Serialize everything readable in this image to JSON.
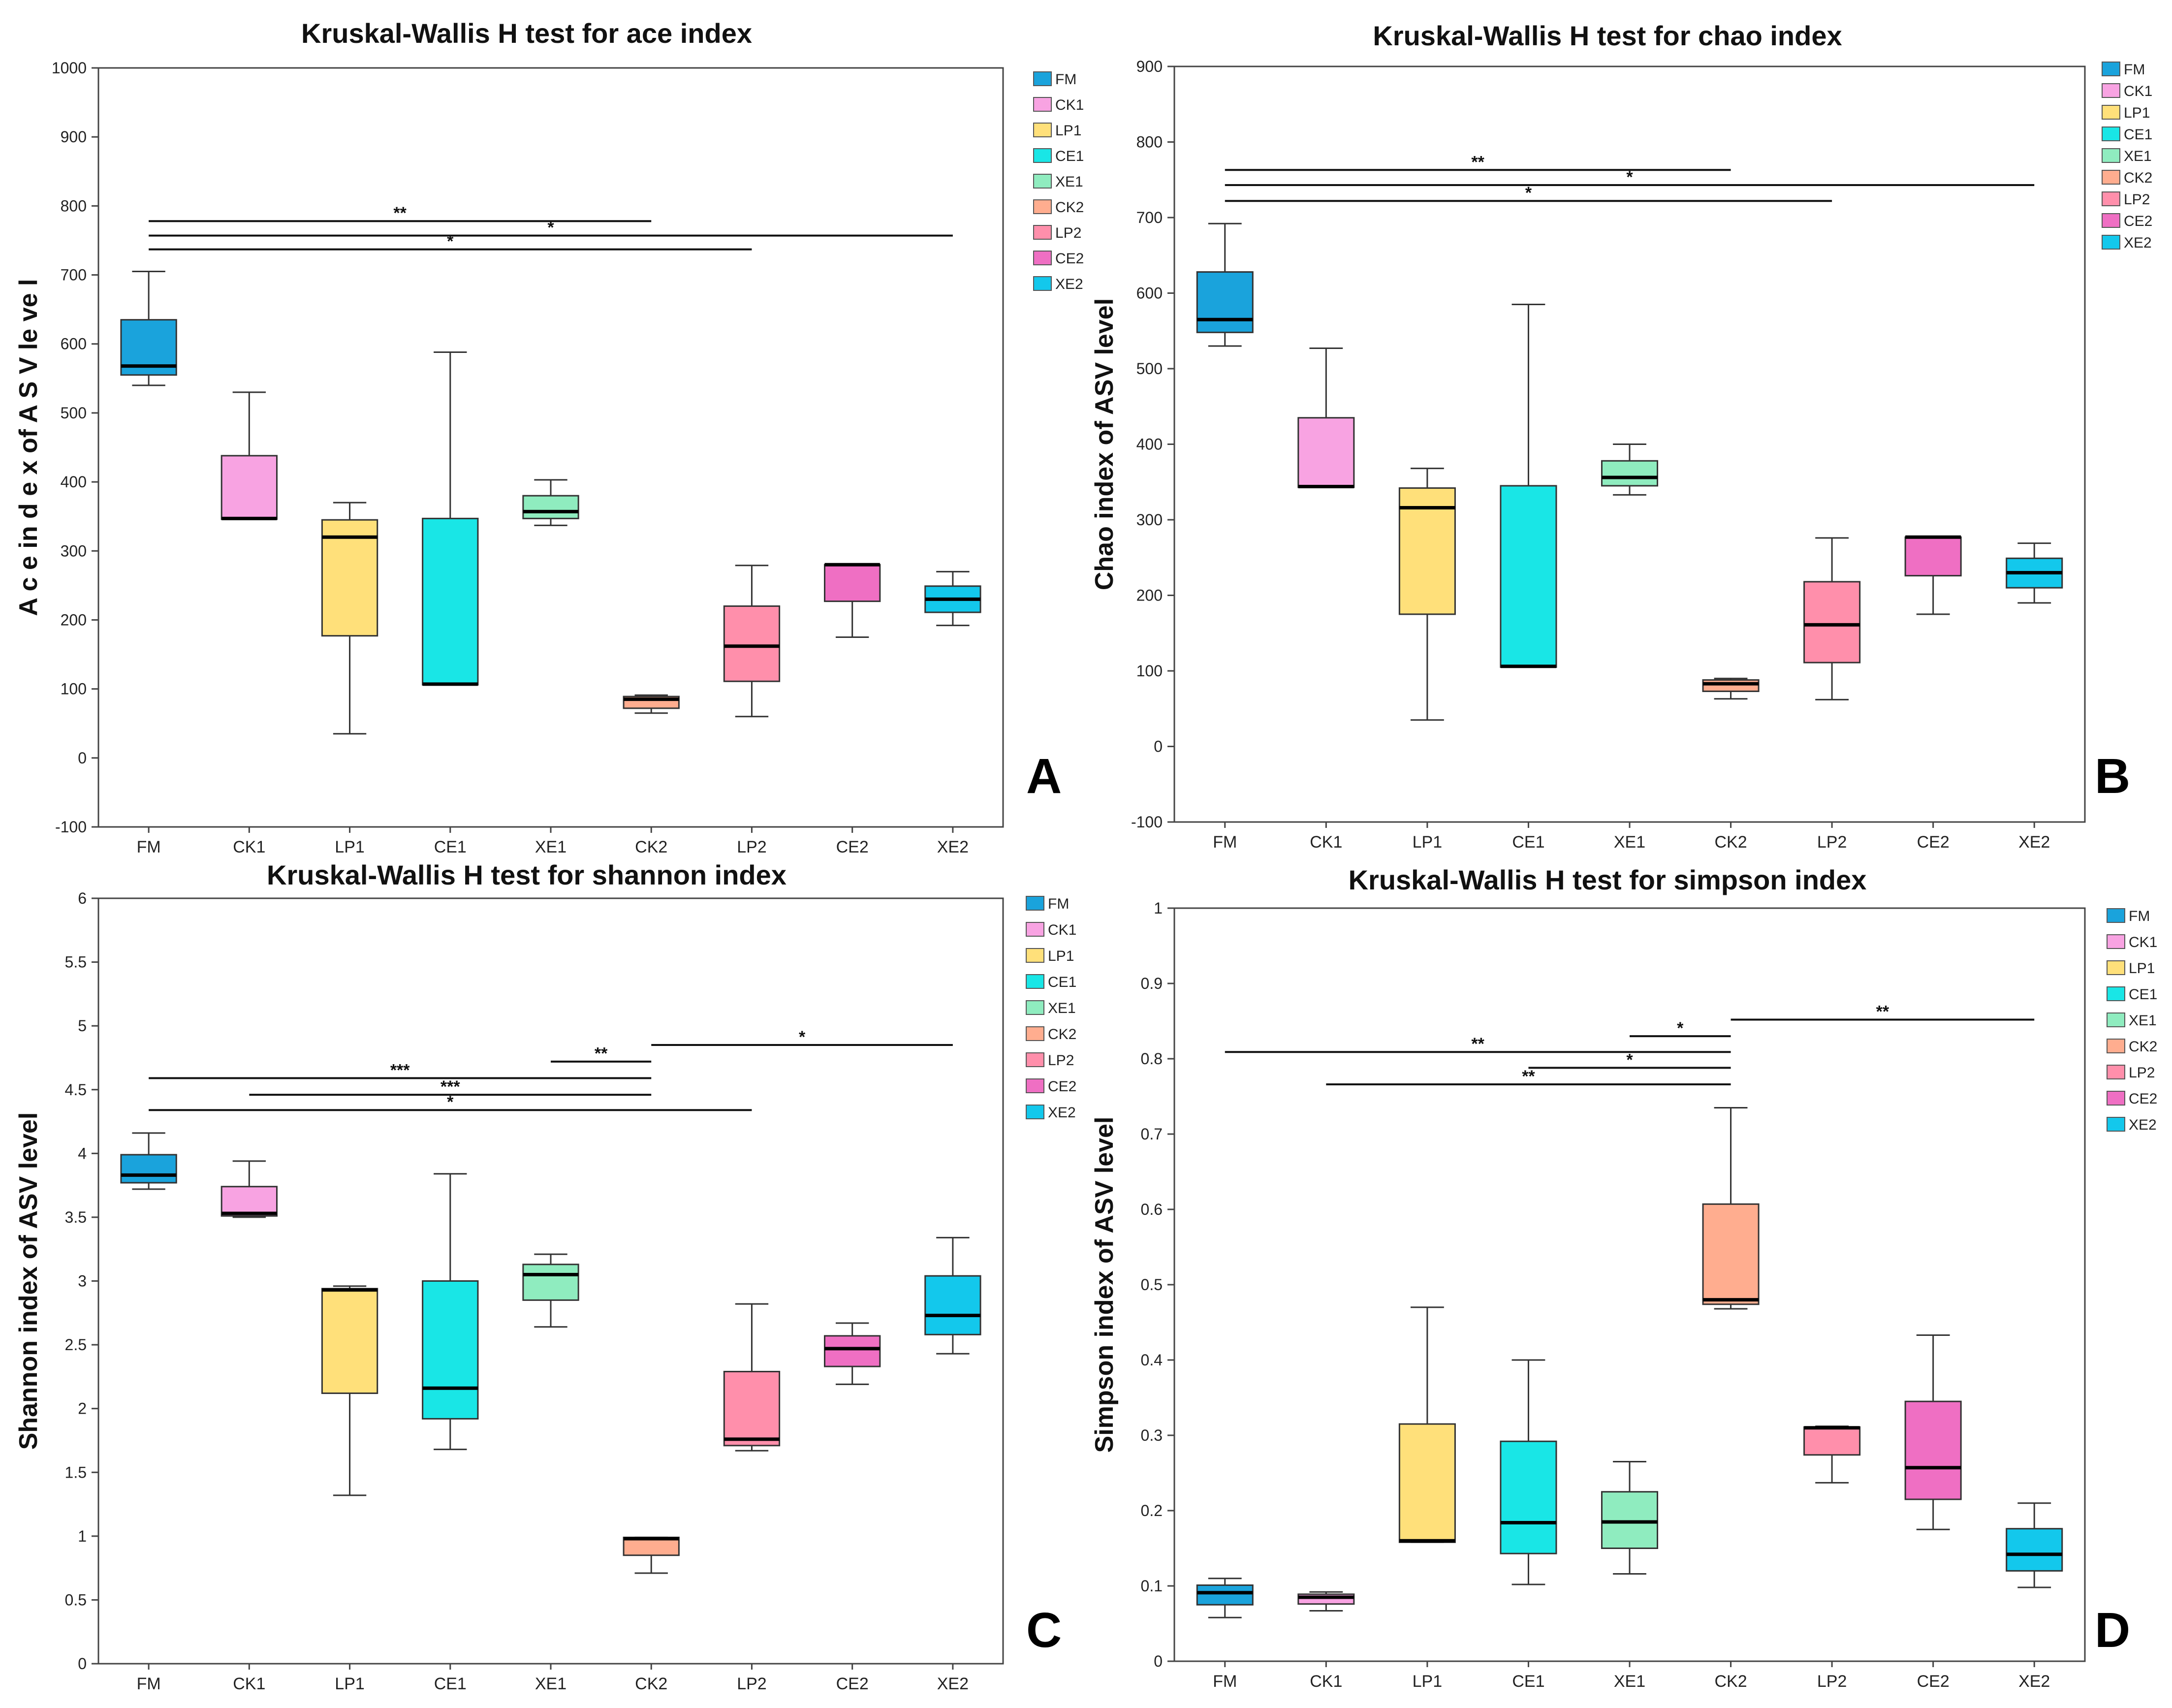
{
  "colors": {
    "FM": "#1aa3dc",
    "CK1": "#f8a3e2",
    "LP1": "#ffe07a",
    "CE1": "#19e6e6",
    "XE1": "#8fecbf",
    "CK2": "#ffad8f",
    "LP2": "#ff8fab",
    "CE2": "#ef6fc3",
    "XE2": "#13c8ec"
  },
  "chart_data": [
    {
      "id": "A",
      "type": "box",
      "panel_label": "A",
      "title": "Kruskal-Wallis H test for ace index",
      "ylabel": "A c e in d e x of A S V le ve l",
      "xlabel": "",
      "ylim": [
        -100,
        1000
      ],
      "yticks": [
        -100,
        0,
        100,
        200,
        300,
        400,
        500,
        600,
        700,
        800,
        900,
        1000
      ],
      "categories": [
        "FM",
        "CK1",
        "LP1",
        "CE1",
        "XE1",
        "CK2",
        "LP2",
        "CE2",
        "XE2"
      ],
      "legend": [
        "FM",
        "CK1",
        "LP1",
        "CE1",
        "XE1",
        "CK2",
        "LP2",
        "CE2",
        "XE2"
      ],
      "legend_position": "right",
      "grid": false,
      "boxes": [
        {
          "name": "FM",
          "min": 540,
          "q1": 555,
          "median": 568,
          "q3": 635,
          "max": 705
        },
        {
          "name": "CK1",
          "min": 346,
          "q1": 346,
          "median": 347,
          "q3": 438,
          "max": 530
        },
        {
          "name": "LP1",
          "min": 35,
          "q1": 177,
          "median": 320,
          "q3": 345,
          "max": 370
        },
        {
          "name": "CE1",
          "min": 106,
          "q1": 106,
          "median": 107,
          "q3": 347,
          "max": 588
        },
        {
          "name": "XE1",
          "min": 337,
          "q1": 347,
          "median": 357,
          "q3": 380,
          "max": 403
        },
        {
          "name": "CK2",
          "min": 65,
          "q1": 72,
          "median": 85,
          "q3": 89,
          "max": 91
        },
        {
          "name": "LP2",
          "min": 60,
          "q1": 111,
          "median": 162,
          "q3": 220,
          "max": 279
        },
        {
          "name": "CE2",
          "min": 175,
          "q1": 227,
          "median": 280,
          "q3": 280,
          "max": 281
        },
        {
          "name": "XE2",
          "min": 192,
          "q1": 211,
          "median": 230,
          "q3": 249,
          "max": 270
        }
      ],
      "significance": [
        {
          "from": "FM",
          "to": "CK2",
          "y": 778,
          "label": "**"
        },
        {
          "from": "FM",
          "to": "XE2",
          "y": 757,
          "label": "*"
        },
        {
          "from": "FM",
          "to": "LP2",
          "y": 737,
          "label": "*"
        }
      ]
    },
    {
      "id": "B",
      "type": "box",
      "panel_label": "B",
      "title": "Kruskal-Wallis H test for chao index",
      "ylabel": "Chao index of ASV level",
      "xlabel": "",
      "ylim": [
        -100,
        900
      ],
      "yticks": [
        -100,
        0,
        100,
        200,
        300,
        400,
        500,
        600,
        700,
        800,
        900
      ],
      "categories": [
        "FM",
        "CK1",
        "LP1",
        "CE1",
        "XE1",
        "CK2",
        "LP2",
        "CE2",
        "XE2"
      ],
      "legend": [
        "FM",
        "CK1",
        "LP1",
        "CE1",
        "XE1",
        "CK2",
        "LP2",
        "CE2",
        "XE2"
      ],
      "legend_position": "right",
      "grid": false,
      "boxes": [
        {
          "name": "FM",
          "min": 530,
          "q1": 548,
          "median": 565,
          "q3": 628,
          "max": 692
        },
        {
          "name": "CK1",
          "min": 343,
          "q1": 343,
          "median": 344,
          "q3": 435,
          "max": 527
        },
        {
          "name": "LP1",
          "min": 35,
          "q1": 175,
          "median": 316,
          "q3": 342,
          "max": 368
        },
        {
          "name": "CE1",
          "min": 105,
          "q1": 105,
          "median": 106,
          "q3": 345,
          "max": 585
        },
        {
          "name": "XE1",
          "min": 333,
          "q1": 345,
          "median": 356,
          "q3": 378,
          "max": 400
        },
        {
          "name": "CK2",
          "min": 63,
          "q1": 73,
          "median": 83,
          "q3": 88,
          "max": 90
        },
        {
          "name": "LP2",
          "min": 62,
          "q1": 111,
          "median": 161,
          "q3": 218,
          "max": 276
        },
        {
          "name": "CE2",
          "min": 175,
          "q1": 226,
          "median": 277,
          "q3": 277,
          "max": 278
        },
        {
          "name": "XE2",
          "min": 190,
          "q1": 210,
          "median": 230,
          "q3": 249,
          "max": 269
        }
      ],
      "significance": [
        {
          "from": "FM",
          "to": "CK2",
          "y": 763,
          "label": "**"
        },
        {
          "from": "FM",
          "to": "XE2",
          "y": 743,
          "label": "*"
        },
        {
          "from": "FM",
          "to": "LP2",
          "y": 722,
          "label": "*"
        }
      ]
    },
    {
      "id": "C",
      "type": "box",
      "panel_label": "C",
      "title": "Kruskal-Wallis H test for shannon index",
      "ylabel": "Shannon index of ASV level",
      "xlabel": "",
      "ylim": [
        0,
        6
      ],
      "yticks": [
        0,
        0.5,
        1,
        1.5,
        2,
        2.5,
        3,
        3.5,
        4,
        4.5,
        5,
        5.5,
        6
      ],
      "categories": [
        "FM",
        "CK1",
        "LP1",
        "CE1",
        "XE1",
        "CK2",
        "LP2",
        "CE2",
        "XE2"
      ],
      "legend": [
        "FM",
        "CK1",
        "LP1",
        "CE1",
        "XE1",
        "CK2",
        "LP2",
        "CE2",
        "XE2"
      ],
      "legend_position": "right",
      "grid": false,
      "boxes": [
        {
          "name": "FM",
          "min": 3.72,
          "q1": 3.77,
          "median": 3.83,
          "q3": 3.99,
          "max": 4.16
        },
        {
          "name": "CK1",
          "min": 3.5,
          "q1": 3.51,
          "median": 3.53,
          "q3": 3.74,
          "max": 3.94
        },
        {
          "name": "LP1",
          "min": 1.32,
          "q1": 2.12,
          "median": 2.93,
          "q3": 2.94,
          "max": 2.96
        },
        {
          "name": "CE1",
          "min": 1.68,
          "q1": 1.92,
          "median": 2.16,
          "q3": 3.0,
          "max": 3.84
        },
        {
          "name": "XE1",
          "min": 2.64,
          "q1": 2.85,
          "median": 3.05,
          "q3": 3.13,
          "max": 3.21
        },
        {
          "name": "CK2",
          "min": 0.71,
          "q1": 0.85,
          "median": 0.98,
          "q3": 0.99,
          "max": 0.99
        },
        {
          "name": "LP2",
          "min": 1.67,
          "q1": 1.71,
          "median": 1.76,
          "q3": 2.29,
          "max": 2.82
        },
        {
          "name": "CE2",
          "min": 2.19,
          "q1": 2.33,
          "median": 2.47,
          "q3": 2.57,
          "max": 2.67
        },
        {
          "name": "XE2",
          "min": 2.43,
          "q1": 2.58,
          "median": 2.73,
          "q3": 3.04,
          "max": 3.34
        }
      ],
      "significance": [
        {
          "from": "CK2",
          "to": "XE2",
          "y": 4.85,
          "label": "*"
        },
        {
          "from": "XE1",
          "to": "CK2",
          "y": 4.72,
          "label": "**"
        },
        {
          "from": "FM",
          "to": "CK2",
          "y": 4.59,
          "label": "***"
        },
        {
          "from": "CK1",
          "to": "CK2",
          "y": 4.46,
          "label": "***"
        },
        {
          "from": "FM",
          "to": "LP2",
          "y": 4.34,
          "label": "*"
        }
      ]
    },
    {
      "id": "D",
      "type": "box",
      "panel_label": "D",
      "title": "Kruskal-Wallis H test for simpson index",
      "ylabel": "Simpson index of ASV level",
      "xlabel": "",
      "ylim": [
        0,
        1
      ],
      "yticks": [
        0,
        0.1,
        0.2,
        0.3,
        0.4,
        0.5,
        0.6,
        0.7,
        0.8,
        0.9,
        1
      ],
      "categories": [
        "FM",
        "CK1",
        "LP1",
        "CE1",
        "XE1",
        "CK2",
        "LP2",
        "CE2",
        "XE2"
      ],
      "legend": [
        "FM",
        "CK1",
        "LP1",
        "CE1",
        "XE1",
        "CK2",
        "LP2",
        "CE2",
        "XE2"
      ],
      "legend_position": "right",
      "grid": false,
      "boxes": [
        {
          "name": "FM",
          "min": 0.058,
          "q1": 0.075,
          "median": 0.091,
          "q3": 0.101,
          "max": 0.11
        },
        {
          "name": "CK1",
          "min": 0.067,
          "q1": 0.076,
          "median": 0.085,
          "q3": 0.089,
          "max": 0.092
        },
        {
          "name": "LP1",
          "min": 0.158,
          "q1": 0.158,
          "median": 0.16,
          "q3": 0.315,
          "max": 0.47
        },
        {
          "name": "CE1",
          "min": 0.102,
          "q1": 0.143,
          "median": 0.184,
          "q3": 0.292,
          "max": 0.4
        },
        {
          "name": "XE1",
          "min": 0.116,
          "q1": 0.15,
          "median": 0.185,
          "q3": 0.225,
          "max": 0.265
        },
        {
          "name": "CK2",
          "min": 0.468,
          "q1": 0.474,
          "median": 0.48,
          "q3": 0.607,
          "max": 0.735
        },
        {
          "name": "LP2",
          "min": 0.237,
          "q1": 0.274,
          "median": 0.31,
          "q3": 0.311,
          "max": 0.312
        },
        {
          "name": "CE2",
          "min": 0.175,
          "q1": 0.215,
          "median": 0.257,
          "q3": 0.345,
          "max": 0.433
        },
        {
          "name": "XE2",
          "min": 0.098,
          "q1": 0.12,
          "median": 0.142,
          "q3": 0.176,
          "max": 0.21
        }
      ],
      "significance": [
        {
          "from": "CK2",
          "to": "XE2",
          "y": 0.852,
          "label": "**"
        },
        {
          "from": "XE1",
          "to": "CK2",
          "y": 0.83,
          "label": "*"
        },
        {
          "from": "FM",
          "to": "CK2",
          "y": 0.809,
          "label": "**"
        },
        {
          "from": "CE1",
          "to": "CK2",
          "y": 0.788,
          "label": "*"
        },
        {
          "from": "CK1",
          "to": "CK2",
          "y": 0.766,
          "label": "**"
        }
      ]
    }
  ]
}
